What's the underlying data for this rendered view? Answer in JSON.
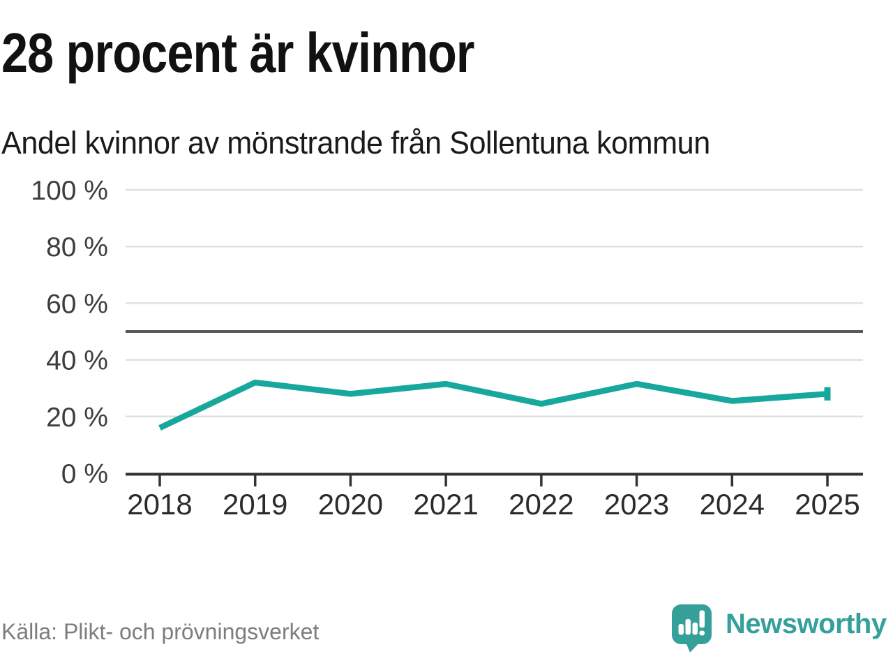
{
  "header": {
    "title": "28 procent är kvinnor",
    "subtitle": "Andel kvinnor av mönstrande från Sollentuna kommun"
  },
  "chart_data": {
    "type": "line",
    "categories": [
      "2018",
      "2019",
      "2020",
      "2021",
      "2022",
      "2023",
      "2024",
      "2025"
    ],
    "series": [
      {
        "name": "Andel kvinnor",
        "values": [
          16,
          32,
          28,
          31.5,
          24.5,
          31.5,
          25.5,
          28
        ]
      }
    ],
    "xlabel": "",
    "ylabel": "",
    "ylim": [
      0,
      100
    ],
    "yticks": [
      0,
      20,
      40,
      60,
      80,
      100
    ],
    "ytick_format": "{v} %",
    "reference_line": 50,
    "grid": true,
    "legend": "none",
    "colors": {
      "line": "#17a79c",
      "reference_line": "#595959",
      "gridline": "#e0e0e0",
      "axis": "#333333",
      "y_label": "#3d3d3d",
      "x_label": "#2b2b2b"
    }
  },
  "footer": {
    "source": "Källa: Plikt- och prövningsverket",
    "brand": "Newsworthy",
    "brand_color": "#35a09a"
  }
}
